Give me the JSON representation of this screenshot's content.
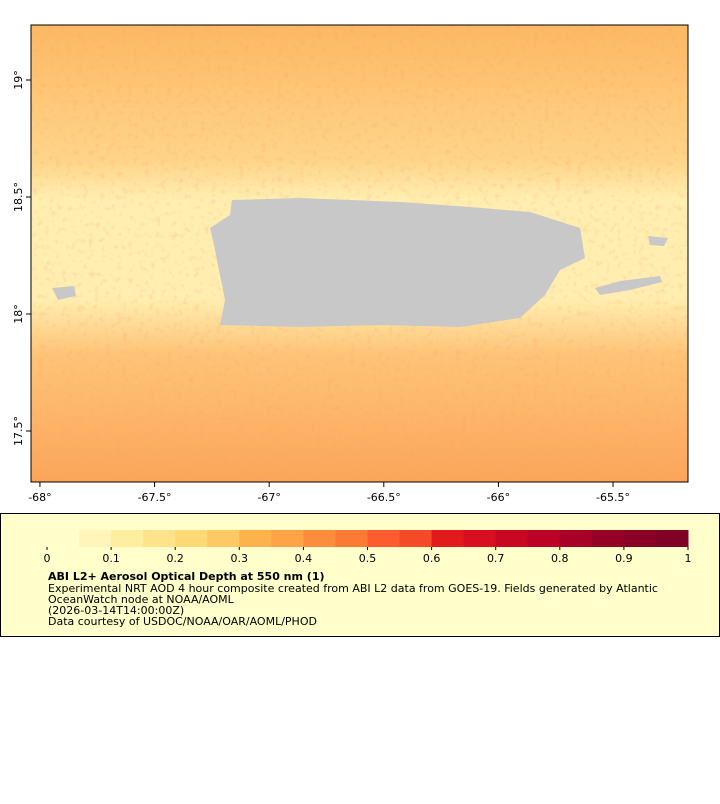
{
  "map": {
    "xlim": [
      -68.039,
      -65.173
    ],
    "ylim": [
      17.282,
      19.235
    ],
    "xticks": [
      {
        "value": -68,
        "label": "-68°"
      },
      {
        "value": -67.5,
        "label": "-67.5°"
      },
      {
        "value": -67,
        "label": "-67°"
      },
      {
        "value": -66.5,
        "label": "-66.5°"
      },
      {
        "value": -66,
        "label": "-66°"
      },
      {
        "value": -65.5,
        "label": "-65.5°"
      }
    ],
    "yticks": [
      {
        "value": 17.5,
        "label": "17.5°"
      },
      {
        "value": 18,
        "label": "18°"
      },
      {
        "value": 18.5,
        "label": "18.5°"
      },
      {
        "value": 19,
        "label": "19°"
      }
    ]
  },
  "colorbar": {
    "lim": [
      0,
      1
    ],
    "ticks": [
      0,
      0.1,
      0.2,
      0.3,
      0.4,
      0.5,
      0.6,
      0.7,
      0.8,
      0.9,
      1
    ],
    "colors": [
      "#ffffcc",
      "#fff5b8",
      "#ffeda0",
      "#fee38b",
      "#fed976",
      "#fec965",
      "#feb24c",
      "#fea446",
      "#fd8d3c",
      "#fd7a35",
      "#fc5c2e",
      "#f54a27",
      "#e31a1c",
      "#d80f20",
      "#c80723",
      "#bd0026",
      "#a80026",
      "#960026",
      "#8a0026",
      "#800026"
    ]
  },
  "legend": {
    "title": "ABI L2+ Aerosol Optical Depth at 550 nm (1)",
    "lines": [
      "Experimental NRT AOD 4 hour composite created from ABI L2 data from GOES-19. Fields generated by Atlantic",
      "OceanWatch node at NOAA/AOML",
      "(2026-03-14T14:00:00Z)",
      "Data courtesy of USDOC/NOAA/OAR/AOML/PHOD"
    ]
  }
}
